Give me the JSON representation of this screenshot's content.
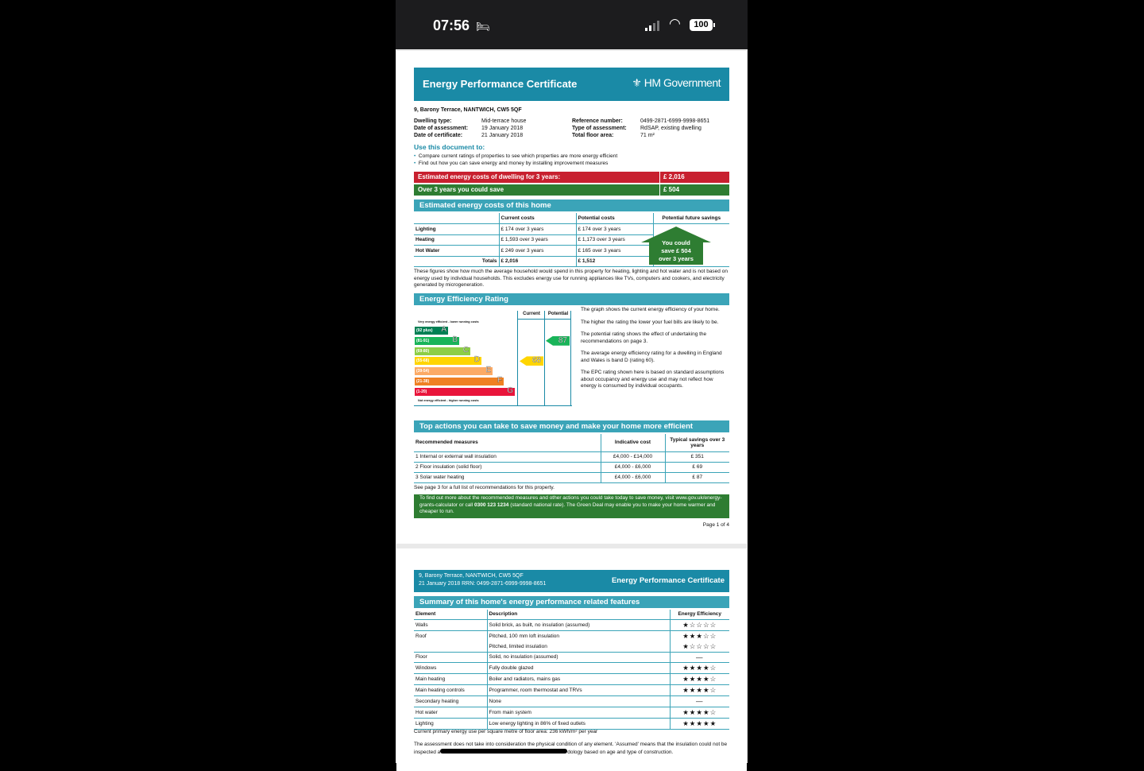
{
  "status_bar": {
    "time": "07:56",
    "battery": "100",
    "icons": [
      "bed-icon",
      "signal-icon",
      "wifi-icon",
      "battery-icon"
    ]
  },
  "page1": {
    "header_title": "Energy Performance Certificate",
    "logo_text": "HM Government",
    "address": "9, Barony Terrace, NANTWICH, CW5 5QF",
    "info_left": [
      {
        "label": "Dwelling type:",
        "value": "Mid-terrace house"
      },
      {
        "label": "Date of assessment:",
        "value": "19   January   2018"
      },
      {
        "label": "Date of certificate:",
        "value": "21   January   2018"
      }
    ],
    "info_right": [
      {
        "label": "Reference number:",
        "value": "0499-2871-6999-9998-8651"
      },
      {
        "label": "Type of assessment:",
        "value": "RdSAP, existing dwelling"
      },
      {
        "label": "Total floor area:",
        "value": "71 m²"
      }
    ],
    "use_heading": "Use this document to:",
    "bullets": [
      "Compare current ratings of properties to see which properties are more energy efficient",
      "Find out how you can save energy and money by installing improvement measures"
    ],
    "cost_bar": {
      "label": "Estimated energy costs of dwelling for 3 years:",
      "value": "£ 2,016"
    },
    "save_bar": {
      "label": "Over 3 years you could save",
      "value": "£ 504"
    },
    "costs_heading": "Estimated energy costs of this home",
    "costs_table": {
      "headers": [
        "",
        "Current costs",
        "Potential costs",
        "Potential future savings"
      ],
      "rows": [
        [
          "Lighting",
          "£ 174 over 3 years",
          "£ 174 over 3 years"
        ],
        [
          "Heating",
          "£ 1,593 over 3 years",
          "£ 1,173 over 3 years"
        ],
        [
          "Hot Water",
          "£ 249 over 3 years",
          "£ 165 over 3 years"
        ],
        [
          "Totals",
          "£ 2,016",
          "£ 1,512"
        ]
      ],
      "savings_house": [
        "You could",
        "save £ 504",
        "over 3 years"
      ]
    },
    "costs_note": "These figures show how much the average household would spend in this property for heating, lighting and hot water and is not based on energy used by individual households. This excludes energy use for running appliances like TVs, computers and cookers, and electricity generated by microgeneration.",
    "rating_heading": "Energy Efficiency Rating",
    "rating": {
      "top_label": "Very energy efficient - lower running costs",
      "bottom_label": "Not energy efficient - higher running costs",
      "col_current": "Current",
      "col_potential": "Potential",
      "bands": [
        {
          "range": "(92 plus)",
          "letter": "A",
          "color": "#008054"
        },
        {
          "range": "(81-91)",
          "letter": "B",
          "color": "#19b459"
        },
        {
          "range": "(69-80)",
          "letter": "C",
          "color": "#8dce46"
        },
        {
          "range": "(55-68)",
          "letter": "D",
          "color": "#ffd500"
        },
        {
          "range": "(39-54)",
          "letter": "E",
          "color": "#fcaa65"
        },
        {
          "range": "(21-38)",
          "letter": "F",
          "color": "#ef8023"
        },
        {
          "range": "(1-20)",
          "letter": "G",
          "color": "#e9153b"
        }
      ],
      "current": "68",
      "current_band": "D",
      "potential": "87",
      "potential_band": "B"
    },
    "rating_text": [
      "The graph shows the current energy efficiency of your home.",
      "The higher the rating the lower your fuel bills are likely to be.",
      "The potential rating shows the effect of undertaking the recommendations on page 3.",
      "The average energy efficiency rating for a dwelling in England and Wales is band D (rating 60).",
      "The EPC rating shown here is based on standard assumptions about occupancy and energy use and may not reflect how energy is consumed by individual occupants."
    ],
    "actions_heading": "Top actions you can take to save money and make your home more efficient",
    "actions_table": {
      "headers": [
        "Recommended measures",
        "Indicative cost",
        "Typical savings over 3 years"
      ],
      "rows": [
        [
          "1  Internal or external wall insulation",
          "£4,000 - £14,000",
          "£ 351"
        ],
        [
          "2  Floor insulation (solid floor)",
          "£4,000 - £6,000",
          "£ 69"
        ],
        [
          "3  Solar water heating",
          "£4,000 - £6,000",
          "£ 87"
        ]
      ]
    },
    "see_page": "See page 3 for a full list of recommendations for this property.",
    "green_note_a": "To find out more about the recommended measures and other actions you could take today to save money, visit www.gov.uk/energy-grants-calculator or call ",
    "green_note_phone": "0300 123 1234",
    "green_note_b": " (standard national rate). The Green Deal may enable you to make your home warmer and cheaper to run.",
    "page_num": "Page 1 of 4"
  },
  "page2": {
    "header_address": "9, Barony Terrace, NANTWICH, CW5 5QF",
    "header_ref": "21   January   2018    RRN: 0499-2871-6999-9998-8651",
    "header_title": "Energy Performance Certificate",
    "summary_heading": "Summary of this home's energy performance related features",
    "headers": [
      "Element",
      "Description",
      "Energy Efficiency"
    ],
    "rows": [
      {
        "element": "Walls",
        "description": "Solid brick, as built, no insulation (assumed)",
        "stars": 1
      },
      {
        "element": "Roof",
        "description": "Pitched, 100 mm loft insulation",
        "stars": 3
      },
      {
        "element": "",
        "description": "Pitched, limited insulation",
        "stars": 1
      },
      {
        "element": "Floor",
        "description": "Solid, no insulation (assumed)",
        "stars": null,
        "na": "—"
      },
      {
        "element": "Windows",
        "description": "Fully double glazed",
        "stars": 4
      },
      {
        "element": "Main heating",
        "description": "Boiler and radiators, mains gas",
        "stars": 4
      },
      {
        "element": "Main heating controls",
        "description": "Programmer, room thermostat and TRVs",
        "stars": 4
      },
      {
        "element": "Secondary heating",
        "description": "None",
        "stars": null,
        "na": "—"
      },
      {
        "element": "Hot water",
        "description": "From main system",
        "stars": 4
      },
      {
        "element": "Lighting",
        "description": "Low energy lighting in 86% of fixed outlets",
        "stars": 5
      }
    ],
    "energy_use": "Current primary energy use per square metre of floor area: 236 kWh/m² per year",
    "assessment_a": "The assessment does not take into consideration the physical condition of any element. 'Assumed' means that the insulation could not be inspected a",
    "assessment_b": "dology based on age and type of construction."
  },
  "colors": {
    "teal": "#3ba4b8",
    "dark_teal": "#1a8aa6",
    "red": "#c8202f",
    "green": "#2e7d32"
  }
}
